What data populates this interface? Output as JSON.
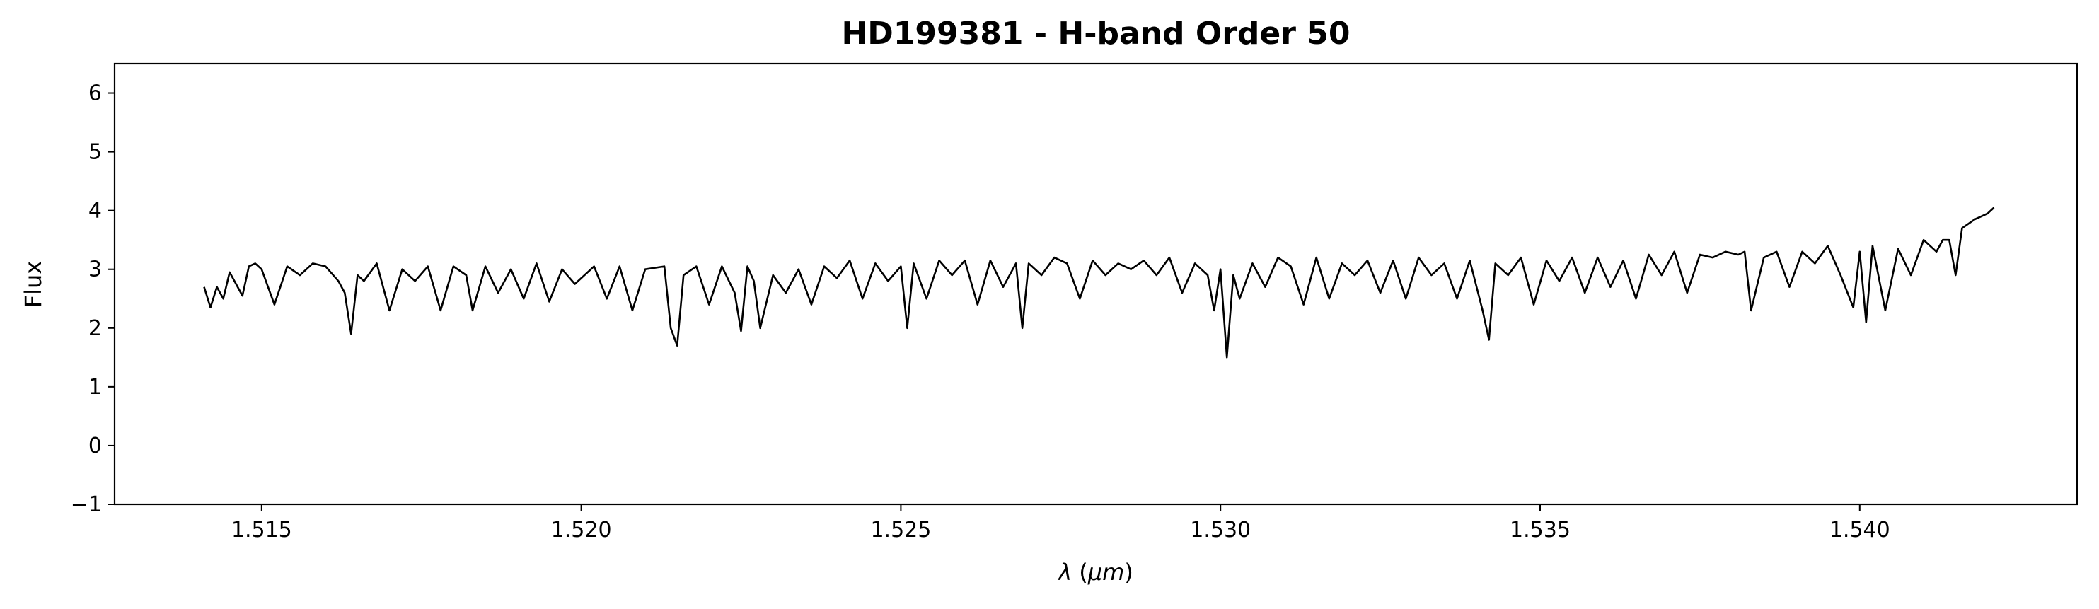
{
  "chart_data": {
    "type": "line",
    "title": "HD199381 - H-band Order 50",
    "xlabel_symbol": "λ",
    "xlabel_open": " (",
    "xlabel_unit": "μm",
    "xlabel_close": ")",
    "ylabel": "Flux",
    "xlim": [
      1.5127,
      1.5434
    ],
    "ylim": [
      -1,
      6.5
    ],
    "xticks": [
      1.515,
      1.52,
      1.525,
      1.53,
      1.535,
      1.54
    ],
    "xtick_labels": [
      "1.515",
      "1.520",
      "1.525",
      "1.530",
      "1.535",
      "1.540"
    ],
    "yticks": [
      -1,
      0,
      1,
      2,
      3,
      4,
      5,
      6
    ],
    "ytick_labels": [
      "−1",
      "0",
      "1",
      "2",
      "3",
      "4",
      "5",
      "6"
    ],
    "grid": false,
    "line_color": "#000000",
    "series": [
      {
        "x": [
          1.5141,
          1.5142,
          1.5143,
          1.5144,
          1.5145,
          1.5147,
          1.5148,
          1.5149,
          1.515,
          1.5152,
          1.5154,
          1.5156,
          1.5158,
          1.516,
          1.5162,
          1.5163,
          1.5164,
          1.5165,
          1.5166,
          1.5168,
          1.517,
          1.5172,
          1.5174,
          1.5176,
          1.5178,
          1.518,
          1.5182,
          1.5183,
          1.5185,
          1.5187,
          1.5189,
          1.5191,
          1.5193,
          1.5195,
          1.5197,
          1.5199,
          1.5202,
          1.5204,
          1.5206,
          1.5208,
          1.521,
          1.5213,
          1.5214,
          1.5215,
          1.5216,
          1.5218,
          1.522,
          1.5222,
          1.5224,
          1.5225,
          1.5226,
          1.5227,
          1.5228,
          1.523,
          1.5232,
          1.5234,
          1.5236,
          1.5238,
          1.524,
          1.5242,
          1.5244,
          1.5246,
          1.5248,
          1.525,
          1.5251,
          1.5252,
          1.5254,
          1.5256,
          1.5258,
          1.526,
          1.5262,
          1.5264,
          1.5266,
          1.5268,
          1.5269,
          1.527,
          1.5272,
          1.5274,
          1.5276,
          1.5278,
          1.528,
          1.5282,
          1.5284,
          1.5286,
          1.5288,
          1.529,
          1.5292,
          1.5294,
          1.5296,
          1.5298,
          1.5299,
          1.53,
          1.5301,
          1.5302,
          1.5303,
          1.5305,
          1.5307,
          1.5309,
          1.5311,
          1.5313,
          1.5315,
          1.5317,
          1.5319,
          1.5321,
          1.5323,
          1.5325,
          1.5327,
          1.5329,
          1.5331,
          1.5333,
          1.5335,
          1.5337,
          1.5339,
          1.5341,
          1.5342,
          1.5343,
          1.5345,
          1.5347,
          1.5349,
          1.5351,
          1.5353,
          1.5355,
          1.5357,
          1.5359,
          1.5361,
          1.5363,
          1.5365,
          1.5367,
          1.5369,
          1.5371,
          1.5373,
          1.5375,
          1.5377,
          1.5379,
          1.5381,
          1.5382,
          1.5383,
          1.5385,
          1.5387,
          1.5389,
          1.5391,
          1.5393,
          1.5395,
          1.5397,
          1.5399,
          1.54,
          1.5401,
          1.5402,
          1.5404,
          1.5406,
          1.5408,
          1.541,
          1.5412,
          1.5413,
          1.5414,
          1.5415,
          1.5416,
          1.5418,
          1.542,
          1.5421
        ],
        "y": [
          2.7,
          2.35,
          2.7,
          2.5,
          2.95,
          2.55,
          3.05,
          3.1,
          3.0,
          2.4,
          3.05,
          2.9,
          3.1,
          3.05,
          2.8,
          2.6,
          1.9,
          2.9,
          2.8,
          3.1,
          2.3,
          3.0,
          2.8,
          3.05,
          2.3,
          3.05,
          2.9,
          2.3,
          3.05,
          2.6,
          3.0,
          2.5,
          3.1,
          2.45,
          3.0,
          2.75,
          3.05,
          2.5,
          3.05,
          2.3,
          3.0,
          3.05,
          2.0,
          1.7,
          2.9,
          3.05,
          2.4,
          3.05,
          2.6,
          1.95,
          3.05,
          2.8,
          2.0,
          2.9,
          2.6,
          3.0,
          2.4,
          3.05,
          2.85,
          3.15,
          2.5,
          3.1,
          2.8,
          3.05,
          2.0,
          3.1,
          2.5,
          3.15,
          2.9,
          3.15,
          2.4,
          3.15,
          2.7,
          3.1,
          2.0,
          3.1,
          2.9,
          3.2,
          3.1,
          2.5,
          3.15,
          2.9,
          3.1,
          3.0,
          3.15,
          2.9,
          3.2,
          2.6,
          3.1,
          2.9,
          2.3,
          3.0,
          1.5,
          2.9,
          2.5,
          3.1,
          2.7,
          3.2,
          3.05,
          2.4,
          3.2,
          2.5,
          3.1,
          2.9,
          3.15,
          2.6,
          3.15,
          2.5,
          3.2,
          2.9,
          3.1,
          2.5,
          3.15,
          2.3,
          1.8,
          3.1,
          2.9,
          3.2,
          2.4,
          3.15,
          2.8,
          3.2,
          2.6,
          3.2,
          2.7,
          3.15,
          2.5,
          3.25,
          2.9,
          3.3,
          2.6,
          3.25,
          3.2,
          3.3,
          3.25,
          3.3,
          2.3,
          3.2,
          3.3,
          2.7,
          3.3,
          3.1,
          3.4,
          2.9,
          2.35,
          3.3,
          2.1,
          3.4,
          2.3,
          3.35,
          2.9,
          3.5,
          3.3,
          3.5,
          3.5,
          2.9,
          3.7,
          3.85,
          3.95,
          4.05
        ]
      }
    ]
  }
}
